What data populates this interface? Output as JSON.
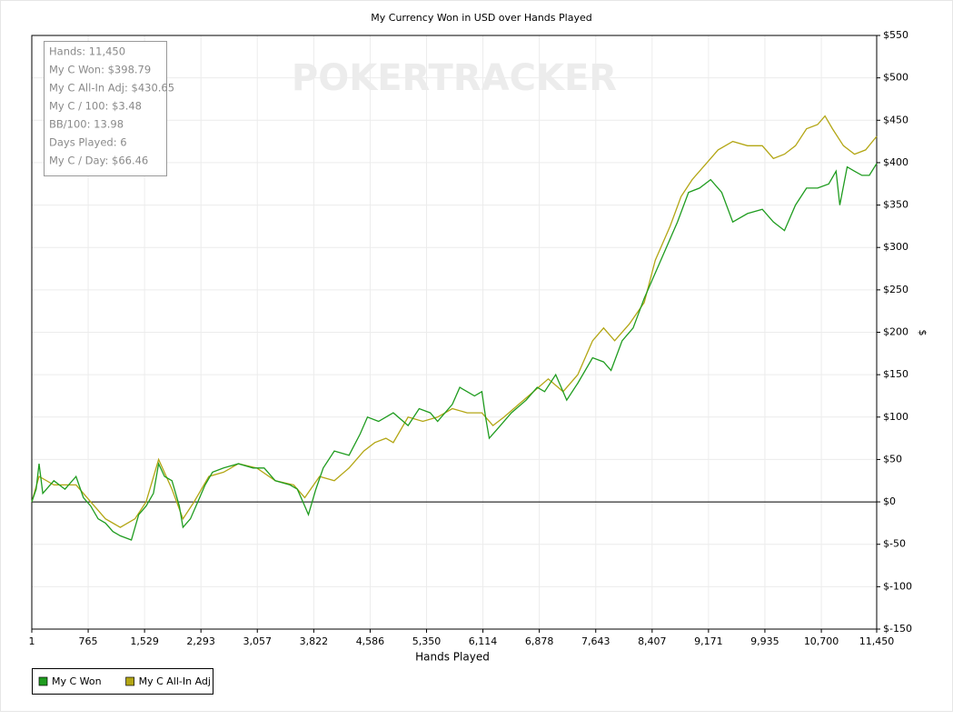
{
  "chart_data": {
    "type": "line",
    "title": "My Currency Won in USD over Hands Played",
    "x_label": "Hands Played",
    "y_label": "$",
    "watermark": "POKERTRACKER",
    "stats": [
      "Hands: 11,450",
      "My C Won: $398.79",
      "My C All-In Adj: $430.65",
      "My C / 100: $3.48",
      "BB/100: 13.98",
      "Days Played: 6",
      "My C / Day: $66.46"
    ],
    "xlim": [
      1,
      11450
    ],
    "ylim": [
      -150,
      550
    ],
    "xticks": [
      1,
      765,
      {
        "value": 1529,
        "label": "1,529"
      },
      {
        "value": 2293,
        "label": "2,293"
      },
      {
        "value": 3057,
        "label": "3,057"
      },
      {
        "value": 3822,
        "label": "3,822"
      },
      {
        "value": 4586,
        "label": "4,586"
      },
      {
        "value": 5350,
        "label": "5,350"
      },
      {
        "value": 6114,
        "label": "6,114"
      },
      {
        "value": 6878,
        "label": "6,878"
      },
      {
        "value": 7643,
        "label": "7,643"
      },
      {
        "value": 8407,
        "label": "8,407"
      },
      {
        "value": 9171,
        "label": "9,171"
      },
      {
        "value": 9935,
        "label": "9,935"
      },
      {
        "value": 10700,
        "label": "10,700"
      },
      {
        "value": 11450,
        "label": "11,450"
      }
    ],
    "yticks": [
      {
        "value": 550,
        "label": "$550"
      },
      {
        "value": 500,
        "label": "$500"
      },
      {
        "value": 450,
        "label": "$450"
      },
      {
        "value": 400,
        "label": "$400"
      },
      {
        "value": 350,
        "label": "$350"
      },
      {
        "value": 300,
        "label": "$300"
      },
      {
        "value": 250,
        "label": "$250"
      },
      {
        "value": 200,
        "label": "$200"
      },
      {
        "value": 150,
        "label": "$150"
      },
      {
        "value": 100,
        "label": "$100"
      },
      {
        "value": 50,
        "label": "$50"
      },
      {
        "value": 0,
        "label": "$0"
      },
      {
        "value": -50,
        "label": "$-50"
      },
      {
        "value": -100,
        "label": "$-100"
      },
      {
        "value": -150,
        "label": "$-150"
      }
    ],
    "grid": true,
    "legend": "bottom-left",
    "series": [
      {
        "name": "My C Won",
        "color": "#1f9c1f",
        "x": [
          1,
          60,
          100,
          150,
          300,
          450,
          600,
          700,
          800,
          900,
          1000,
          1100,
          1200,
          1350,
          1450,
          1550,
          1650,
          1720,
          1800,
          1900,
          2000,
          2050,
          2150,
          2250,
          2350,
          2450,
          2600,
          2800,
          3000,
          3150,
          3300,
          3500,
          3600,
          3700,
          3750,
          3850,
          3950,
          4100,
          4300,
          4450,
          4550,
          4700,
          4900,
          5100,
          5250,
          5400,
          5500,
          5700,
          5800,
          5900,
          6000,
          6100,
          6150,
          6200,
          6300,
          6500,
          6700,
          6850,
          6950,
          7100,
          7250,
          7400,
          7600,
          7750,
          7850,
          8000,
          8150,
          8300,
          8450,
          8600,
          8750,
          8900,
          9050,
          9200,
          9350,
          9500,
          9700,
          9900,
          10050,
          10200,
          10350,
          10500,
          10650,
          10800,
          10900,
          10950,
          11050,
          11150,
          11250,
          11350,
          11450
        ],
        "values": [
          0,
          15,
          45,
          10,
          25,
          15,
          30,
          5,
          -5,
          -20,
          -25,
          -35,
          -40,
          -45,
          -15,
          -5,
          10,
          45,
          30,
          25,
          -5,
          -30,
          -20,
          0,
          20,
          35,
          40,
          45,
          40,
          40,
          25,
          20,
          15,
          -5,
          -15,
          15,
          40,
          60,
          55,
          80,
          100,
          95,
          105,
          90,
          110,
          105,
          95,
          115,
          135,
          130,
          125,
          130,
          100,
          75,
          85,
          105,
          120,
          135,
          130,
          150,
          120,
          140,
          170,
          165,
          155,
          190,
          205,
          240,
          270,
          300,
          330,
          365,
          370,
          380,
          365,
          330,
          340,
          345,
          330,
          320,
          350,
          370,
          370,
          375,
          390,
          350,
          395,
          390,
          385,
          385,
          399
        ]
      },
      {
        "name": "My C All-In Adj",
        "color": "#b3a614",
        "x": [
          1,
          100,
          300,
          600,
          800,
          1000,
          1200,
          1400,
          1550,
          1720,
          1900,
          2050,
          2200,
          2400,
          2600,
          2800,
          3050,
          3300,
          3550,
          3700,
          3900,
          4100,
          4300,
          4500,
          4650,
          4800,
          4900,
          5100,
          5300,
          5500,
          5700,
          5900,
          6100,
          6250,
          6400,
          6600,
          6800,
          7000,
          7200,
          7400,
          7600,
          7750,
          7900,
          8100,
          8300,
          8450,
          8650,
          8800,
          8950,
          9150,
          9300,
          9500,
          9700,
          9900,
          10050,
          10200,
          10350,
          10500,
          10650,
          10750,
          10850,
          11000,
          11150,
          11300,
          11450
        ],
        "values": [
          0,
          30,
          20,
          20,
          0,
          -20,
          -30,
          -20,
          0,
          50,
          15,
          -20,
          0,
          30,
          35,
          45,
          40,
          25,
          20,
          5,
          30,
          25,
          40,
          60,
          70,
          75,
          70,
          100,
          95,
          100,
          110,
          105,
          105,
          90,
          100,
          115,
          130,
          145,
          130,
          150,
          190,
          205,
          190,
          210,
          235,
          285,
          325,
          360,
          380,
          400,
          415,
          425,
          420,
          420,
          405,
          410,
          420,
          440,
          445,
          455,
          440,
          420,
          410,
          415,
          431
        ]
      }
    ]
  }
}
